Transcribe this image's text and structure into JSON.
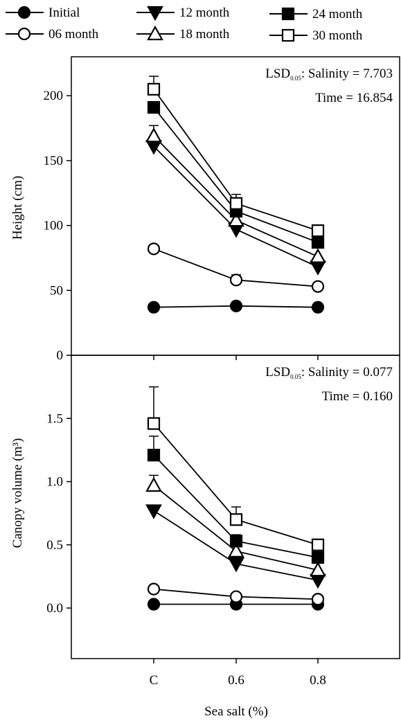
{
  "legend": {
    "entries": [
      {
        "label": "Initial",
        "marker": "filled-circle"
      },
      {
        "label": "06 month",
        "marker": "open-circle"
      },
      {
        "label": "12 month",
        "marker": "filled-triangle-down"
      },
      {
        "label": "18 month",
        "marker": "open-triangle-up"
      },
      {
        "label": "24 month",
        "marker": "filled-square"
      },
      {
        "label": "30 month",
        "marker": "open-square"
      }
    ]
  },
  "x_axis": {
    "title": "Sea salt (%)",
    "categories": [
      "C",
      "0.6",
      "0.8"
    ]
  },
  "chart_data": [
    {
      "type": "line",
      "ylabel": "Height (cm)",
      "ylim": [
        0,
        230
      ],
      "yticks": [
        0,
        50,
        100,
        150,
        200
      ],
      "ytick_labels": [
        "0",
        "50",
        "100",
        "150",
        "200"
      ],
      "categories": [
        "C",
        "0.6",
        "0.8"
      ],
      "annotation": {
        "lsd_prefix": "LSD",
        "lsd_sub": "0.05",
        "line1_rest": ": Salinity = 7.703",
        "line2": "Time = 16.854"
      },
      "series": [
        {
          "name": "Initial",
          "marker": "filled-circle",
          "values": [
            37,
            38,
            37
          ],
          "err": [
            0,
            0,
            0
          ]
        },
        {
          "name": "06 month",
          "marker": "open-circle",
          "values": [
            82,
            58,
            53
          ],
          "err": [
            0,
            4,
            0
          ]
        },
        {
          "name": "12 month",
          "marker": "filled-triangle-down",
          "values": [
            161,
            97,
            68
          ],
          "err": [
            3,
            0,
            0
          ]
        },
        {
          "name": "18 month",
          "marker": "open-triangle-up",
          "values": [
            169,
            104,
            76
          ],
          "err": [
            8,
            3,
            0
          ]
        },
        {
          "name": "24 month",
          "marker": "filled-square",
          "values": [
            191,
            111,
            87
          ],
          "err": [
            0,
            5,
            0
          ]
        },
        {
          "name": "30 month",
          "marker": "open-square",
          "values": [
            205,
            117,
            96
          ],
          "err": [
            10,
            7,
            0
          ]
        }
      ]
    },
    {
      "type": "line",
      "ylabel": "Canopy volume (m³)",
      "ylim": [
        -0.4,
        2.0
      ],
      "yticks": [
        0,
        0.5,
        1.0,
        1.5
      ],
      "ytick_labels": [
        "0.0",
        "0.5",
        "1.0",
        "1.5"
      ],
      "categories": [
        "C",
        "0.6",
        "0.8"
      ],
      "annotation": {
        "lsd_prefix": "LSD",
        "lsd_sub": "0.05",
        "line1_rest": ": Salinity = 0.077",
        "line2": "Time = 0.160"
      },
      "series": [
        {
          "name": "Initial",
          "marker": "filled-circle",
          "values": [
            0.03,
            0.03,
            0.03
          ],
          "err": [
            0,
            0,
            0
          ]
        },
        {
          "name": "06 month",
          "marker": "open-circle",
          "values": [
            0.15,
            0.09,
            0.07
          ],
          "err": [
            0,
            0,
            0
          ]
        },
        {
          "name": "12 month",
          "marker": "filled-triangle-down",
          "values": [
            0.77,
            0.35,
            0.22
          ],
          "err": [
            0,
            0,
            0
          ]
        },
        {
          "name": "18 month",
          "marker": "open-triangle-up",
          "values": [
            0.97,
            0.45,
            0.3
          ],
          "err": [
            0.08,
            0,
            0
          ]
        },
        {
          "name": "24 month",
          "marker": "filled-square",
          "values": [
            1.21,
            0.53,
            0.4
          ],
          "err": [
            0.15,
            0.05,
            0
          ]
        },
        {
          "name": "30 month",
          "marker": "open-square",
          "values": [
            1.46,
            0.7,
            0.5
          ],
          "err": [
            0.29,
            0.1,
            0
          ]
        }
      ]
    }
  ]
}
